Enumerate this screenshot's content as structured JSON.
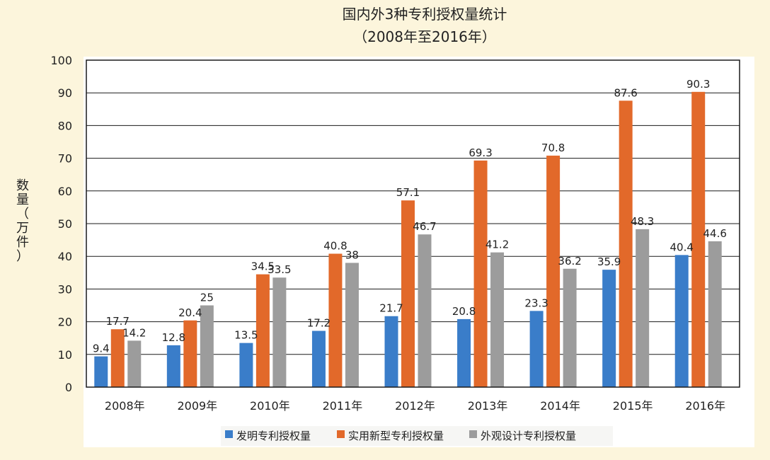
{
  "chart_data": {
    "type": "bar",
    "title": "国内外3种专利授权量统计",
    "subtitle": "（2008年至2016年）",
    "ylabel": "数量（万件）",
    "xlabel": "",
    "categories": [
      "2008年",
      "2009年",
      "2010年",
      "2011年",
      "2012年",
      "2013年",
      "2014年",
      "2015年",
      "2016年"
    ],
    "ylim": [
      0,
      100
    ],
    "yticks": [
      0,
      10,
      20,
      30,
      40,
      50,
      60,
      70,
      80,
      90,
      100
    ],
    "grid": true,
    "legend_position": "bottom",
    "series": [
      {
        "name": "发明专利授权量",
        "color": "#3a7dc9",
        "values": [
          9.4,
          12.8,
          13.5,
          17.2,
          21.7,
          20.8,
          23.3,
          35.9,
          40.4
        ]
      },
      {
        "name": "实用新型专利授权量",
        "color": "#e2692a",
        "values": [
          17.7,
          20.4,
          34.5,
          40.8,
          57.1,
          69.3,
          70.8,
          87.6,
          90.3
        ]
      },
      {
        "name": "外观设计专利授权量",
        "color": "#9c9c9c",
        "values": [
          14.2,
          25,
          33.5,
          38,
          46.7,
          41.2,
          36.2,
          48.3,
          44.6
        ]
      }
    ]
  }
}
